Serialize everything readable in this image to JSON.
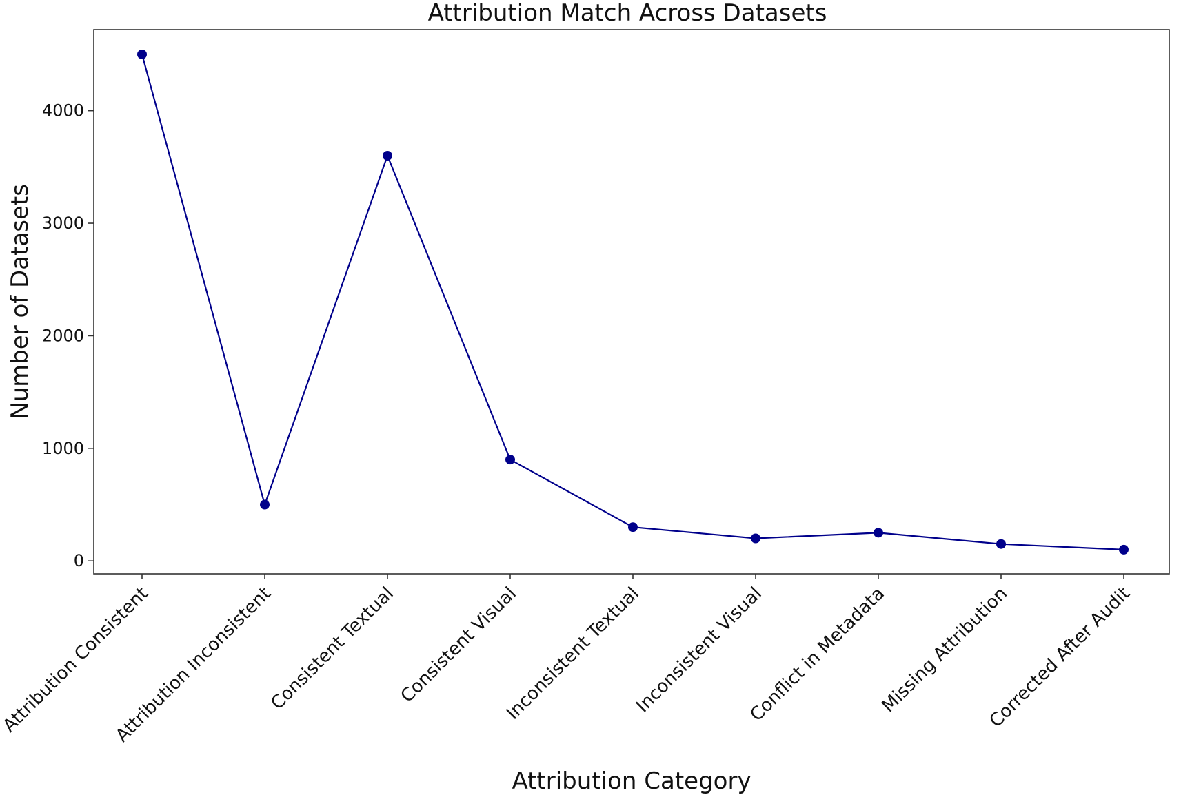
{
  "chart_data": {
    "type": "line",
    "title": "Attribution Match Across Datasets",
    "xlabel": "Attribution Category",
    "ylabel": "Number of Datasets",
    "categories": [
      "Attribution Consistent",
      "Attribution Inconsistent",
      "Consistent Textual",
      "Consistent Visual",
      "Inconsistent Textual",
      "Inconsistent Visual",
      "Conflict in Metadata",
      "Missing Attribution",
      "Corrected After Audit"
    ],
    "series": [
      {
        "values": [
          4500,
          500,
          3600,
          900,
          300,
          200,
          250,
          150,
          100
        ],
        "color": "#00008b",
        "marker": "circle"
      }
    ],
    "yticks": [
      0,
      1000,
      2000,
      3000,
      4000
    ],
    "ytick_labels": [
      "0",
      "1000",
      "2000",
      "3000",
      "4000"
    ],
    "ylim": [
      -115,
      4720
    ],
    "grid": false,
    "legend": false
  }
}
